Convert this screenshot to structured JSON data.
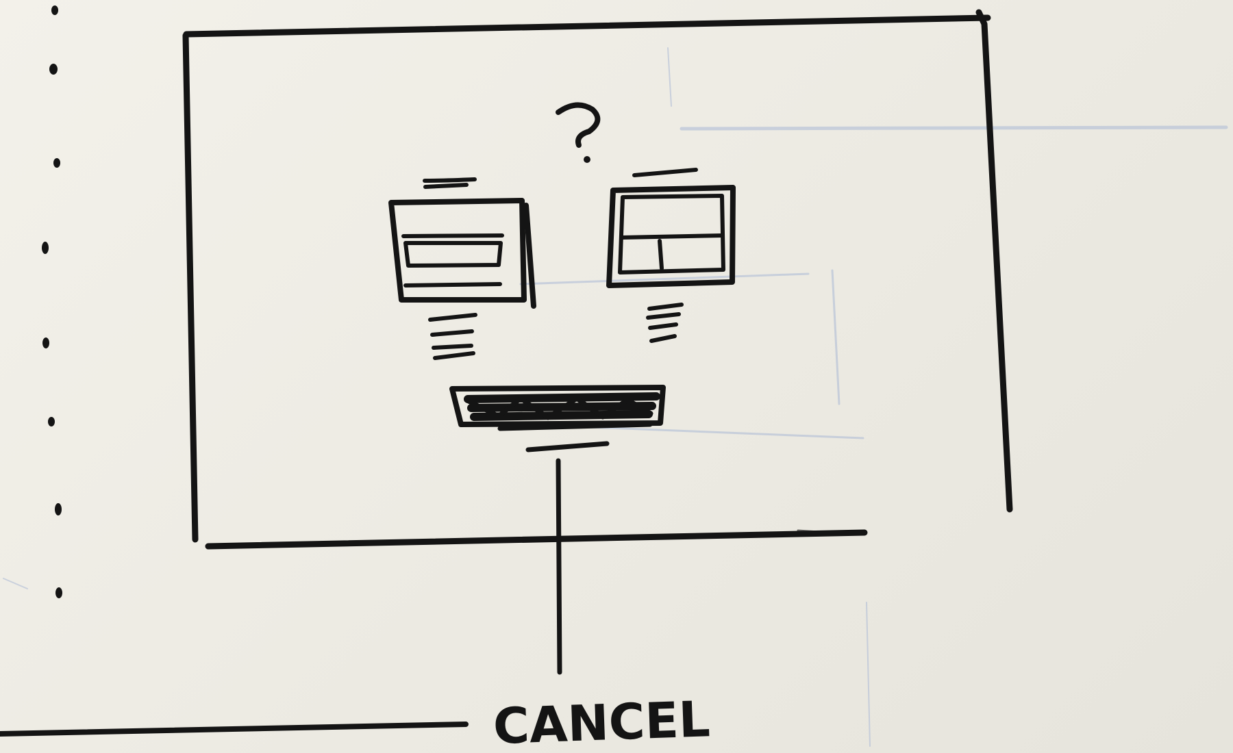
{
  "sketch": {
    "question_mark": "?",
    "cancel_label": "CANCEL"
  },
  "colors": {
    "board": "#f3f1ea",
    "ink": "#141414",
    "ghost_marker": "#a9b8d6"
  },
  "icons": {
    "left_option": "list-layout-icon",
    "right_option": "grid-layout-icon"
  }
}
